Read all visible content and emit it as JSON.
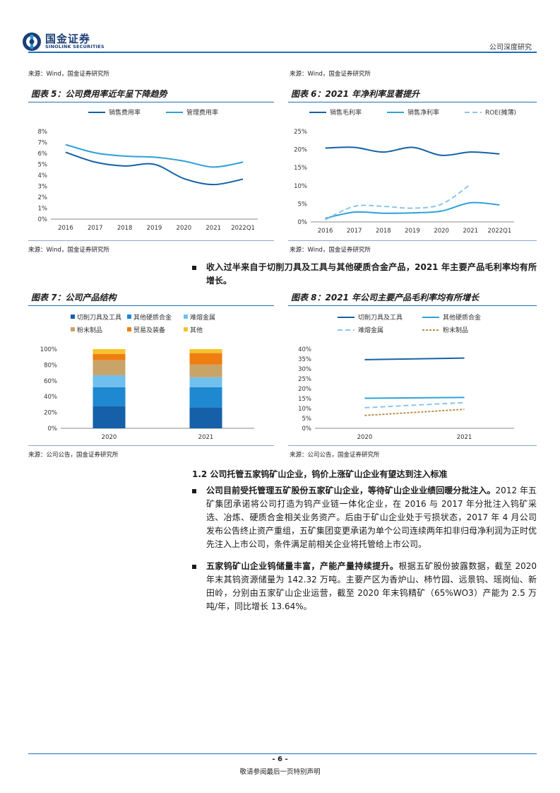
{
  "header": {
    "logo_cn": "国金证券",
    "logo_en": "SINOLINK SECURITIES",
    "report_type": "公司深度研究"
  },
  "sources": {
    "top_left": "来源：Wind，国金证券研究所",
    "top_right": "来源：Wind，国金证券研究所",
    "mid_left": "来源：Wind，国金证券研究所",
    "mid_right": "来源：Wind，国金证券研究所",
    "bot_left": "来源：公司公告，国金证券研究所",
    "bot_right": "来源：公司公告，国金证券研究所"
  },
  "mid_bullet": {
    "text": "收入过半来自于切削刀具及工具与其他硬质合金产品，2021 年主要产品毛利率均有所增长。"
  },
  "chart_data": [
    {
      "id": "fig5",
      "type": "line",
      "title": "图表 5：公司费用率近年呈下降趋势",
      "categories": [
        "2016",
        "2017",
        "2018",
        "2019",
        "2020",
        "2021",
        "2022Q1"
      ],
      "series": [
        {
          "name": "销售费用率",
          "values": [
            6.1,
            5.2,
            4.85,
            5.0,
            3.7,
            3.15,
            3.65
          ],
          "color": "#1560a8",
          "dash": ""
        },
        {
          "name": "管理费用率",
          "values": [
            6.8,
            6.05,
            5.75,
            5.65,
            5.3,
            4.75,
            5.2
          ],
          "color": "#2ea1d8",
          "dash": ""
        }
      ],
      "ylim": [
        0,
        8
      ],
      "yticks": [
        "0%",
        "1%",
        "2%",
        "3%",
        "4%",
        "5%",
        "6%",
        "7%",
        "8%"
      ],
      "legend": "top"
    },
    {
      "id": "fig6",
      "type": "line",
      "title": "图表 6：2021 年净利率显著提升",
      "categories": [
        "2016",
        "2017",
        "2018",
        "2019",
        "2020",
        "2021",
        "2022Q1"
      ],
      "series": [
        {
          "name": "销售毛利率",
          "values": [
            20.4,
            20.6,
            19.3,
            20.6,
            18.4,
            19.3,
            18.8
          ],
          "color": "#1560a8",
          "dash": ""
        },
        {
          "name": "销售净利率",
          "values": [
            1.0,
            2.7,
            2.4,
            2.5,
            3.0,
            5.3,
            4.7
          ],
          "color": "#2ea1d8",
          "dash": ""
        },
        {
          "name": "ROE(摊薄)",
          "values": [
            0.6,
            4.3,
            4.3,
            3.8,
            4.9,
            10.4,
            null
          ],
          "color": "#8cc4ea",
          "dash": "7,4"
        }
      ],
      "ylim": [
        0,
        25
      ],
      "yticks": [
        "0%",
        "5%",
        "10%",
        "15%",
        "20%",
        "25%"
      ],
      "legend": "top"
    },
    {
      "id": "fig7",
      "type": "bar",
      "stacked": true,
      "title": "图表 7：公司产品结构",
      "categories": [
        "2020",
        "2021"
      ],
      "series": [
        {
          "name": "切削刀具及工具",
          "values": [
            28,
            26.5
          ],
          "color": "#1560a8"
        },
        {
          "name": "其他硬质合金",
          "values": [
            24,
            25.5
          ],
          "color": "#1e88d0"
        },
        {
          "name": "难熔金属",
          "values": [
            15,
            12.5
          ],
          "color": "#6fc0ec"
        },
        {
          "name": "粉末制品",
          "values": [
            19,
            16
          ],
          "color": "#c8a468"
        },
        {
          "name": "贸易及装备",
          "values": [
            8,
            14.5
          ],
          "color": "#ee7d12"
        },
        {
          "name": "其他",
          "values": [
            6,
            5
          ],
          "color": "#f7c22a"
        }
      ],
      "ylim": [
        0,
        100
      ],
      "yticks": [
        "0%",
        "20%",
        "40%",
        "60%",
        "80%",
        "100%"
      ],
      "legend": "top"
    },
    {
      "id": "fig8",
      "type": "line",
      "title": "图表 8：2021 年公司主要产品毛利率均有所增长",
      "categories": [
        "2020",
        "2021"
      ],
      "series": [
        {
          "name": "切削刀具及工具",
          "values": [
            34.7,
            35.5
          ],
          "color": "#1560a8",
          "dash": ""
        },
        {
          "name": "其他硬质合金",
          "values": [
            15.2,
            15.6
          ],
          "color": "#2ea1d8",
          "dash": ""
        },
        {
          "name": "难熔金属",
          "values": [
            10.4,
            13.0
          ],
          "color": "#8cc4ea",
          "dash": "7,4"
        },
        {
          "name": "粉末制品",
          "values": [
            6.5,
            9.6
          ],
          "color": "#b98f4a",
          "dash": "3,2"
        }
      ],
      "ylim": [
        0,
        40
      ],
      "yticks": [
        "0%",
        "5%",
        "10%",
        "15%",
        "20%",
        "25%",
        "30%",
        "35%",
        "40%"
      ],
      "legend": "top"
    }
  ],
  "section": {
    "title": "1.2 公司托管五家钨矿山企业，钨价上涨矿山企业有望达到注入标准",
    "bullets": [
      {
        "bold": "公司目前受托管理五矿股份五家矿山企业，等待矿山企业业绩回暖分批注入。",
        "text": "2012 年五矿集团承诺将公司打造为钨产业链一体化企业，在 2016 与 2017 年分批注入钨矿采选、冶炼、硬质合金相关业务资产。后由于矿山企业处于亏损状态，2017 年 4 月公司发布公告终止资产重组，五矿集团变更承诺为单个公司连续两年扣非归母净利润为正时优先注入上市公司，条件满足前相关企业将托管给上市公司。"
      },
      {
        "bold": "五家钨矿山企业钨储量丰富，产能产量持续提升。",
        "text": "根据五矿股份披露数据，截至 2020 年末其钨资源储量为 142.32 万吨。主要产区为香炉山、柿竹园、远景钨、瑶岗仙、新田岭，分别由五家矿山企业运营，截至 2020 年末钨精矿（65%WO3）产能为 2.5 万吨/年，同比增长 13.64%。"
      }
    ]
  },
  "footer": {
    "page": "- 6 -",
    "disclaimer": "敬请参阅最后一页特别声明"
  }
}
